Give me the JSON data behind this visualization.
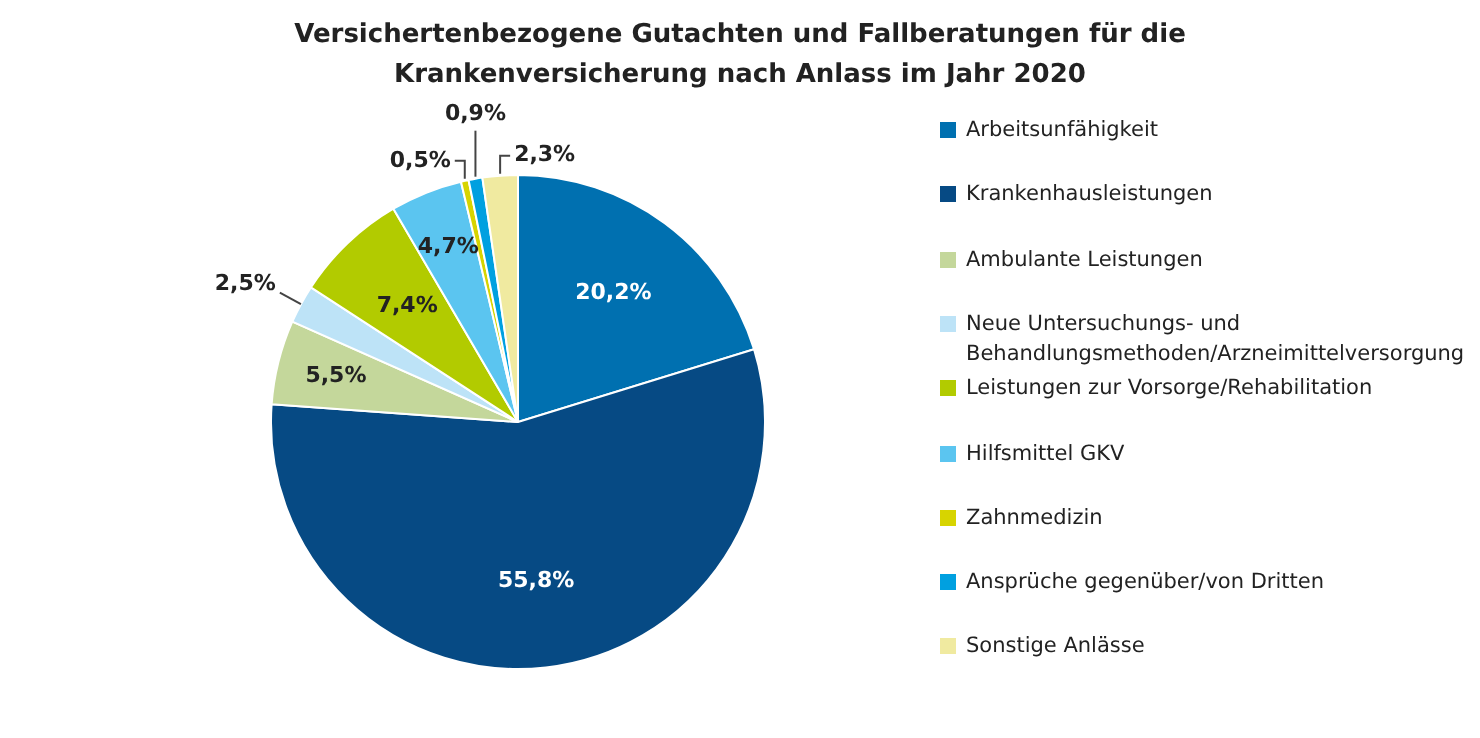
{
  "chart_data": {
    "type": "pie",
    "title": "Versichertenbezogene Gutachten und Fallberatungen für die Krankenversicherung nach Anlass im Jahr 2020",
    "categories": [
      "Arbeitsunfähigkeit",
      "Krankenhausleistungen",
      "Ambulante Leistungen",
      "Neue Untersuchungs- und Behandlungsmethoden/Arzneimittelversorgung",
      "Leistungen zur Vorsorge/Rehabilitation",
      "Hilfsmittel GKV",
      "Zahnmedizin",
      "Ansprüche gegenüber/von Dritten",
      "Sonstige Anlässe"
    ],
    "values": [
      20.2,
      55.8,
      5.5,
      2.5,
      7.4,
      4.7,
      0.5,
      0.9,
      2.3
    ],
    "value_labels": [
      "20,2%",
      "55,8%",
      "5,5%",
      "2,5%",
      "7,4%",
      "4,7%",
      "0,5%",
      "0,9%",
      "2,3%"
    ],
    "colors": [
      "#0070b0",
      "#064a84",
      "#c4d79b",
      "#bde3f7",
      "#b2cb00",
      "#5bc5f0",
      "#d7d400",
      "#00a0e0",
      "#f0eaa0"
    ],
    "legend": "right"
  }
}
